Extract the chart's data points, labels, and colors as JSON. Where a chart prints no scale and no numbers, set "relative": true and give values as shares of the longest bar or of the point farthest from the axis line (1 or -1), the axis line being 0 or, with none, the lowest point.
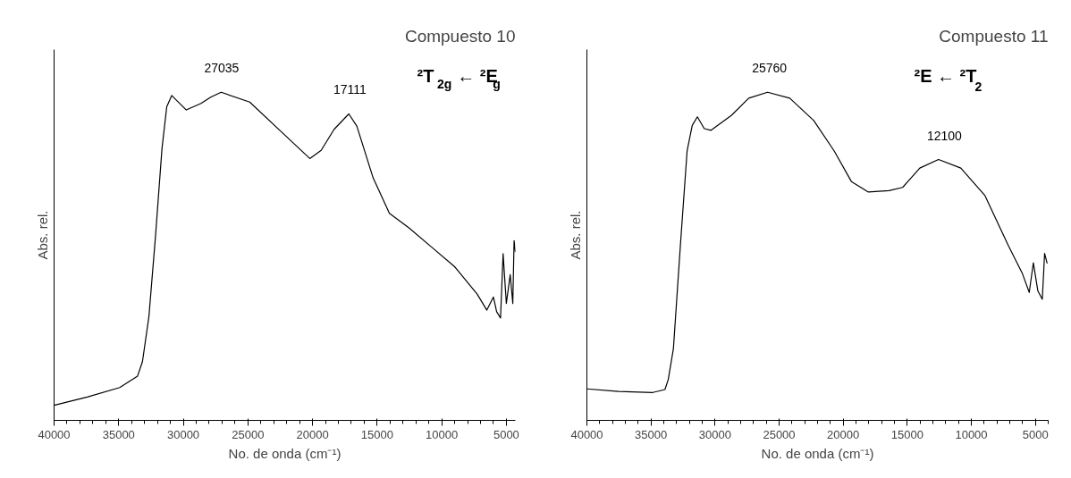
{
  "chart_data": [
    {
      "type": "line",
      "title": "Compuesto 10",
      "xlabel": "No. de onda (cm⁻¹)",
      "ylabel": "Abs. rel.",
      "relative": true,
      "xlim": [
        40000,
        4300
      ],
      "xticks": [
        40000,
        35000,
        30000,
        25000,
        20000,
        15000,
        10000,
        5000
      ],
      "grid": false,
      "x": [
        40000,
        37435,
        34920,
        33540,
        33160,
        32660,
        32150,
        31650,
        31280,
        30900,
        29770,
        28630,
        27880,
        27070,
        24860,
        22350,
        20210,
        19330,
        18330,
        17190,
        16570,
        15310,
        14050,
        12540,
        10780,
        9020,
        7260,
        6510,
        6000,
        5750,
        5450,
        5250,
        5000,
        4700,
        4500,
        4400,
        4300
      ],
      "series": [
        {
          "color": "#000000",
          "values": [
            0.046,
            0.071,
            0.1,
            0.135,
            0.179,
            0.317,
            0.562,
            0.828,
            0.956,
            0.99,
            0.946,
            0.966,
            0.985,
            1.0,
            0.97,
            0.877,
            0.798,
            0.823,
            0.887,
            0.934,
            0.897,
            0.739,
            0.631,
            0.587,
            0.528,
            0.469,
            0.385,
            0.336,
            0.376,
            0.331,
            0.312,
            0.508,
            0.356,
            0.444,
            0.356,
            0.548,
            0.513
          ]
        }
      ],
      "annotations": [
        {
          "text": "27035",
          "x": 27035,
          "y": 1.0
        },
        {
          "text": "17111",
          "x": 17111,
          "y": 0.934
        },
        "²T$_{2g}$ ← ²E$_{g}$"
      ]
    },
    {
      "type": "line",
      "title": "Compuesto 11",
      "xlabel": "No. de onda (cm⁻¹)",
      "ylabel": "Abs. rel.",
      "relative": true,
      "xlim": [
        40000,
        4000
      ],
      "xticks": [
        40000,
        35000,
        30000,
        25000,
        20000,
        15000,
        10000,
        5000
      ],
      "grid": false,
      "x": [
        40000,
        37520,
        34850,
        33910,
        33650,
        33250,
        32710,
        32180,
        31780,
        31380,
        30840,
        30310,
        28710,
        27370,
        25900,
        24170,
        22300,
        20700,
        19360,
        18030,
        16430,
        15360,
        14020,
        12560,
        10820,
        8950,
        7080,
        6010,
        5480,
        5160,
        4810,
        4460,
        4280,
        4080
      ],
      "series": [
        {
          "color": "#000000",
          "values": [
            0.096,
            0.088,
            0.085,
            0.094,
            0.125,
            0.218,
            0.53,
            0.821,
            0.899,
            0.925,
            0.889,
            0.884,
            0.93,
            0.982,
            1.0,
            0.982,
            0.914,
            0.821,
            0.728,
            0.696,
            0.7,
            0.71,
            0.769,
            0.795,
            0.769,
            0.686,
            0.53,
            0.447,
            0.39,
            0.48,
            0.395,
            0.369,
            0.509,
            0.478
          ]
        }
      ],
      "annotations": [
        {
          "text": "25760",
          "x": 25760,
          "y": 1.0
        },
        {
          "text": "12100",
          "x": 12100,
          "y": 0.795
        },
        "²E ← ²T$_{2}$"
      ]
    }
  ]
}
